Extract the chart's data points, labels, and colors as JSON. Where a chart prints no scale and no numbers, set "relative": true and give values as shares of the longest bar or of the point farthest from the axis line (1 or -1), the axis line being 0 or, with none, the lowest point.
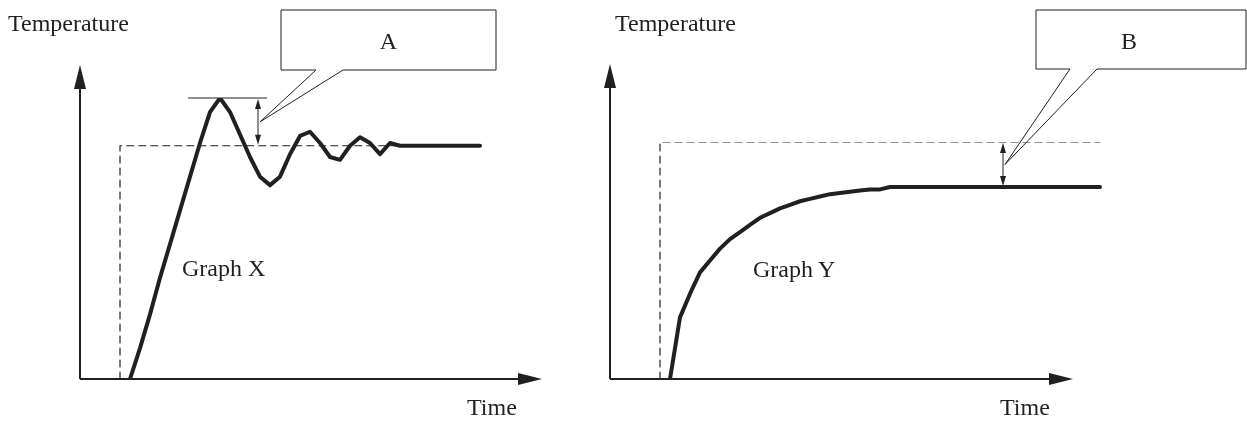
{
  "chart_data": [
    {
      "type": "line",
      "ylabel": "Temperature",
      "xlabel": "Time",
      "relative": true,
      "tick_labels": false,
      "marker": "none",
      "categories": [
        null,
        null,
        null,
        null,
        null,
        null,
        null,
        null,
        null,
        null,
        null,
        null,
        null,
        null,
        null,
        null,
        null,
        null,
        null,
        null,
        null,
        null,
        null,
        null,
        null,
        null,
        null,
        null,
        null,
        null,
        null,
        null,
        null,
        null,
        null,
        null,
        null,
        null,
        null,
        null,
        null,
        null,
        null,
        null,
        null,
        null,
        null
      ],
      "series": [
        {
          "type": "line",
          "color": "#231f20",
          "line_style": "solid",
          "values": [
            null,
            null,
            null,
            null,
            null,
            0,
            0.11,
            0.23,
            0.36,
            0.48,
            0.6,
            0.72,
            0.84,
            0.95,
            1,
            0.95,
            0.87,
            0.79,
            0.72,
            0.69,
            0.72,
            0.8,
            0.865,
            0.88,
            0.84,
            0.79,
            0.78,
            0.83,
            0.86,
            0.84,
            0.8,
            0.84,
            0.83,
            0.83,
            0.83,
            0.83,
            0.83,
            0.83,
            0.83,
            0.83,
            0.83,
            null,
            null,
            null,
            null,
            null,
            null
          ]
        },
        {
          "type": "step",
          "color": "#231f20",
          "line_style": "dashed",
          "values": [
            null,
            null,
            null,
            null,
            0,
            0.83,
            0.83,
            0.83,
            0.83,
            0.83,
            0.83,
            0.83,
            0.83,
            0.83,
            0.83,
            0.83,
            0.83,
            0.83,
            0.83,
            0.83,
            0.83,
            0.83,
            0.83,
            0.83,
            0.83,
            0.83,
            0.83,
            0.83,
            0.83,
            0.83,
            0.83,
            0.83,
            0.83,
            0.83,
            0.83,
            0.83,
            0.83,
            0.83,
            0.83,
            0.83,
            0.83,
            null,
            null,
            null,
            null,
            null,
            null
          ]
        }
      ],
      "annotations": [
        "Graph X",
        "A"
      ]
    },
    {
      "type": "line",
      "ylabel": "Temperature",
      "xlabel": "Time",
      "relative": true,
      "tick_labels": false,
      "marker": "none",
      "categories": [
        null,
        null,
        null,
        null,
        null,
        null,
        null,
        null,
        null,
        null,
        null,
        null,
        null,
        null,
        null,
        null,
        null,
        null,
        null,
        null,
        null,
        null,
        null,
        null,
        null,
        null,
        null,
        null,
        null,
        null,
        null,
        null,
        null,
        null,
        null,
        null,
        null,
        null,
        null,
        null,
        null,
        null,
        null,
        null,
        null,
        null,
        null,
        null,
        null,
        null
      ],
      "series": [
        {
          "type": "line",
          "color": "#231f20",
          "line_style": "solid",
          "values": [
            null,
            null,
            null,
            null,
            null,
            null,
            0,
            0.26,
            0.36,
            0.45,
            0.5,
            0.55,
            0.59,
            0.62,
            0.65,
            0.68,
            0.7,
            0.72,
            0.735,
            0.75,
            0.76,
            0.77,
            0.78,
            0.785,
            0.79,
            0.795,
            0.8,
            0.8,
            0.81,
            0.81,
            0.81,
            0.81,
            0.81,
            0.81,
            0.81,
            0.81,
            0.81,
            0.81,
            0.81,
            0.81,
            0.81,
            0.81,
            0.81,
            0.81,
            0.81,
            0.81,
            0.81,
            0.81,
            0.81,
            0.81
          ]
        },
        {
          "type": "step",
          "color": "#231f20",
          "line_style": "dashed",
          "values": [
            null,
            null,
            null,
            null,
            null,
            0,
            1,
            1,
            1,
            1,
            1,
            1,
            1,
            1,
            1,
            1,
            1,
            1,
            1,
            1,
            1,
            1,
            1,
            1,
            1,
            1,
            1,
            1,
            1,
            1,
            1,
            1,
            1,
            1,
            1,
            1,
            1,
            1,
            1,
            1,
            1,
            1,
            1,
            1,
            1,
            1,
            1,
            1,
            1,
            1
          ]
        }
      ],
      "annotations": [
        "Graph Y",
        "B"
      ]
    }
  ]
}
